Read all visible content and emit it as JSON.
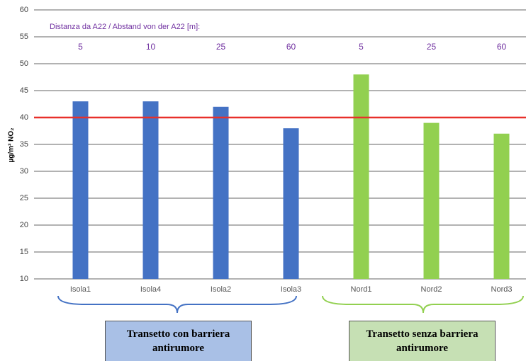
{
  "chart_data": {
    "type": "bar",
    "y_label": "µg/m³ NO₂",
    "annotation": "Distanza da A22 / Abstand von der A22 [m]:",
    "categories": [
      "Isola1",
      "Isola4",
      "Isola2",
      "Isola3",
      "Nord1",
      "Nord2",
      "Nord3"
    ],
    "values": [
      43,
      43,
      42,
      38,
      48,
      39,
      37
    ],
    "colors": [
      "#4472c4",
      "#4472c4",
      "#4472c4",
      "#4472c4",
      "#92d050",
      "#92d050",
      "#92d050"
    ],
    "distances": [
      5,
      10,
      25,
      60,
      5,
      25,
      60
    ],
    "reference_line": 40,
    "reference_color": "#e8302a",
    "ylim": [
      10,
      60
    ],
    "yticks": [
      10,
      15,
      20,
      25,
      30,
      35,
      40,
      45,
      50,
      55,
      60
    ],
    "grid": true,
    "groups": [
      {
        "label": "Transetto con barriera antirumore",
        "color": "#a9c0e6",
        "brace_color": "#4472c4"
      },
      {
        "label": "Transetto senza barriera antirumore",
        "color": "#c6e0b4",
        "brace_color": "#92d050"
      }
    ]
  }
}
